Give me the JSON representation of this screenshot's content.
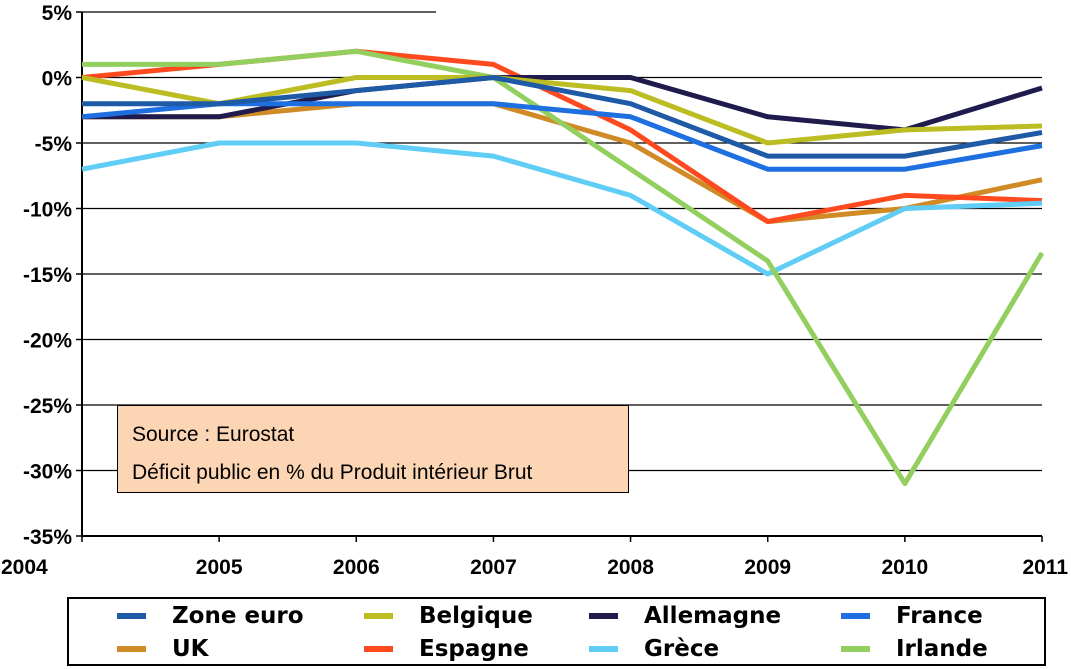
{
  "chart_data": {
    "type": "line",
    "title": "",
    "xlabel": "",
    "ylabel": "",
    "categories": [
      "2004",
      "2005",
      "2006",
      "2007",
      "2008",
      "2009",
      "2010",
      "2011"
    ],
    "ylim": [
      -35,
      5
    ],
    "yticks": [
      5,
      0,
      -5,
      -10,
      -15,
      -20,
      -25,
      -30,
      -35
    ],
    "ytick_labels": [
      "5%",
      "0%",
      "-5%",
      "-10%",
      "-15%",
      "-20%",
      "-25%",
      "-30%",
      "-35%"
    ],
    "grid": true,
    "legend_position": "bottom",
    "annotation": {
      "source": "Source : Eurostat",
      "description": "Déficit public en % du Produit intérieur Brut"
    },
    "series": [
      {
        "name": "Zone euro",
        "color": "#1f5aa6",
        "values": [
          -2,
          -2,
          -1,
          0,
          -2,
          -6,
          -6,
          -4.2
        ]
      },
      {
        "name": "Belgique",
        "color": "#bcbd22",
        "values": [
          0,
          -2,
          0,
          0,
          -1,
          -5,
          -4,
          -3.7
        ]
      },
      {
        "name": "Allemagne",
        "color": "#1f1b4d",
        "values": [
          -3,
          -3,
          -1,
          0,
          0,
          -3,
          -4,
          -0.8
        ]
      },
      {
        "name": "France",
        "color": "#1e6fe0",
        "values": [
          -3,
          -2,
          -2,
          -2,
          -3,
          -7,
          -7,
          -5.2
        ]
      },
      {
        "name": "UK",
        "color": "#d08a26",
        "values": [
          -3,
          -3,
          -2,
          -2,
          -5,
          -11,
          -10,
          -7.8
        ]
      },
      {
        "name": "Espagne",
        "color": "#ff4a1f",
        "values": [
          0,
          1,
          2,
          1,
          -4,
          -11,
          -9,
          -9.4
        ]
      },
      {
        "name": "Grèce",
        "color": "#5fcdf5",
        "values": [
          -7,
          -5,
          -5,
          -6,
          -9,
          -15,
          -10,
          -9.6
        ]
      },
      {
        "name": "Irlande",
        "color": "#93cf5e",
        "values": [
          1,
          1,
          2,
          0,
          -7,
          -14,
          -31,
          -13.4
        ]
      }
    ],
    "draw_order": [
      "UK",
      "Espagne",
      "Grèce",
      "Irlande",
      "Allemagne",
      "Belgique",
      "France",
      "Zone euro"
    ]
  }
}
